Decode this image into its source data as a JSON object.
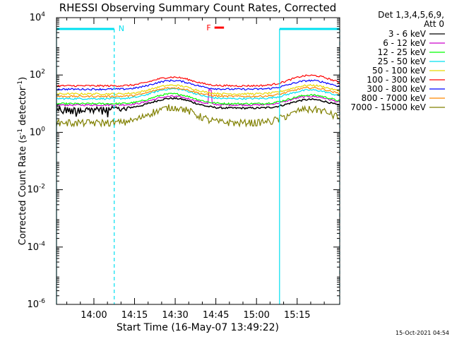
{
  "chart_data": {
    "type": "line",
    "title": "RHESSI Observing Summary Count Rates, Corrected",
    "xlabel": "Start Time (16-May-07 13:49:22)",
    "ylabel_pre": "Corrected Count Rate (s",
    "ylabel_mid": " detector",
    "ylabel_post": ")",
    "ylabel_sup": "-1",
    "y_scale": "log",
    "y_exponent_range": [
      -6,
      4
    ],
    "y_ticks": [
      {
        "base": "10",
        "exp": "4",
        "value": 10000
      },
      {
        "base": "10",
        "exp": "2",
        "value": 100
      },
      {
        "base": "10",
        "exp": "0",
        "value": 1
      },
      {
        "base": "10",
        "exp": "-2",
        "value": 0.01
      },
      {
        "base": "10",
        "exp": "-4",
        "value": 0.0001
      },
      {
        "base": "10",
        "exp": "-6",
        "value": 1e-06
      }
    ],
    "x_range_min": [
      -13.8,
      90.7
    ],
    "x_ticks": [
      {
        "label": "14:00",
        "min": 0
      },
      {
        "label": "14:15",
        "min": 15
      },
      {
        "label": "14:30",
        "min": 30
      },
      {
        "label": "14:45",
        "min": 45
      },
      {
        "label": "15:00",
        "min": 60
      },
      {
        "label": "15:15",
        "min": 75
      }
    ],
    "x_minor_step_min": 5,
    "legend": {
      "header1": "Det 1,3,4,5,6,9,",
      "header2": "Att 0",
      "placement": "right"
    },
    "series": [
      {
        "name": "3 - 6 keV",
        "color": "#000000",
        "base": 7,
        "bump1": 2.2,
        "bump2": 2.0,
        "spiky": true
      },
      {
        "name": "6 - 12 keV",
        "color": "#cc00cc",
        "base": 9,
        "bump1": 2.0,
        "bump2": 2.0,
        "spike": [
          43,
          3
        ]
      },
      {
        "name": "12 - 25 keV",
        "color": "#00ff00",
        "base": 10,
        "bump1": 2.2,
        "bump2": 2.0
      },
      {
        "name": "25 - 50 keV",
        "color": "#00e0f0",
        "base": 15,
        "bump1": 2.2,
        "bump2": 2.0
      },
      {
        "name": "50 - 100 keV",
        "color": "#e8d800",
        "base": 22,
        "bump1": 2.0,
        "bump2": 2.0
      },
      {
        "name": "100 - 300 keV",
        "color": "#ff0000",
        "base": 42,
        "bump1": 2.0,
        "bump2": 2.3
      },
      {
        "name": "300 - 800 keV",
        "color": "#0000ff",
        "base": 32,
        "bump1": 2.0,
        "bump2": 2.0
      },
      {
        "name": "800 - 7000 keV",
        "color": "#ff8800",
        "base": 18,
        "bump1": 2.0,
        "bump2": 2.0
      },
      {
        "name": "7000 - 15000 keV",
        "color": "#808000",
        "base": 2.2,
        "bump1": 3.5,
        "bump2": 3.0,
        "stepped": true
      }
    ],
    "annotations": {
      "night_marker": "N",
      "flare_marker": "F",
      "night_periods": [
        [
          -13.8,
          7.5
        ],
        [
          68.5,
          90.7
        ]
      ],
      "night_color": "#00e0f0",
      "flare_color": "#ff0000",
      "flare_span_min": [
        44.5,
        48.0
      ],
      "flare_level": 4500
    }
  },
  "timestamp": "15-Oct-2021 04:54"
}
